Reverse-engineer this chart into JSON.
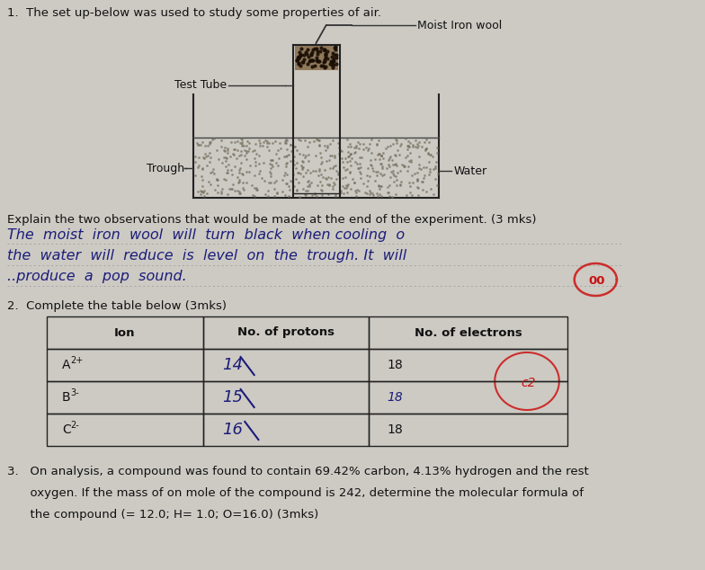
{
  "bg_color": "#cccac3",
  "title_text": "1.  The set up-below was used to study some properties of air.",
  "moist_iron_wool_label": "Moist Iron wool",
  "test_tube_label": "Test Tube",
  "trough_label": "Trough",
  "water_label": "Water",
  "explain_text": "Explain the two observations that would be made at the end of the experiment. (3 mks)",
  "line1": "The  moist  iron  wool  will  turn  black  when cooling  o",
  "line2": "the  water  will  reduce  is  level  on  the  trough. It  will",
  "line3": "..produce  a  pop  sound.",
  "q2_header": "2.  Complete the table below (3mks)",
  "table_headers": [
    "Ion",
    "No. of protons",
    "No. of electrons"
  ],
  "ion_col": [
    "A",
    "B",
    "C"
  ],
  "ion_sup": [
    "2+",
    "3-",
    "2-"
  ],
  "protons_col": [
    "14",
    "15",
    "16"
  ],
  "electrons_col": [
    "18",
    "18",
    "18"
  ],
  "q3_line1": "3.   On analysis, a compound was found to contain 69.42% carbon, 4.13% hydrogen and the rest",
  "q3_line2": "      oxygen. If the mass of on mole of the compound is 242, determine the molecular formula of",
  "q3_line3": "      the compound (= 12.0; H= 1.0; O=16.0) (3mks)"
}
